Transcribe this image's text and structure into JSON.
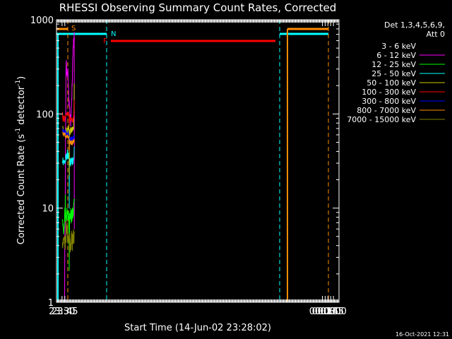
{
  "chart_data": {
    "type": "line",
    "title": "RHESSI Observing Summary Count Rates, Corrected",
    "xlabel": "Start Time (14-Jun-02 23:28:02)",
    "ylabel": "Corrected Count Rate (s",
    "ylabel_sup1": "-1",
    "ylabel_mid": " detector",
    "ylabel_sup2": "-1",
    "ylabel_end": ")",
    "yscale": "log",
    "ylim": [
      1,
      1000
    ],
    "y_ticks": [
      {
        "v": 1,
        "label": "1"
      },
      {
        "v": 10,
        "label": "10"
      },
      {
        "v": 100,
        "label": "100"
      },
      {
        "v": 1000,
        "label": "1000"
      }
    ],
    "xlim_min": [
      -1440,
      90
    ],
    "x_ticks": [
      {
        "v": -1410,
        "label": "23:30"
      },
      {
        "v": -1395,
        "label": "23:45"
      },
      {
        "v": 0,
        "label": "00:00"
      },
      {
        "v": 15,
        "label": "00:15"
      },
      {
        "v": 30,
        "label": "00:30"
      },
      {
        "v": 45,
        "label": "00:45"
      },
      {
        "v": 60,
        "label": "01:00"
      }
    ],
    "legend_header": [
      "Det 1,3,4,5,6,9,",
      "Att 0"
    ],
    "legend_position": "right",
    "footer": "16-Oct-2021 12:31",
    "flags": [
      {
        "label": "S",
        "color": "#ff8c00"
      },
      {
        "label": "N",
        "color": "#00ffff"
      },
      {
        "label": "F",
        "color": "#ff0000"
      }
    ],
    "series": [
      {
        "name": "3 - 6 keV",
        "color": "#000000",
        "x": [
          -1397.0,
          -1395.0,
          -1394.0,
          -1393.0,
          -1391.0,
          -1389.0,
          -1387.0,
          -1385.0,
          -1383.0,
          -1381.0,
          -1379.0,
          -1377.0,
          -1375.0,
          -1373.0,
          -1371.0,
          -1369.0,
          -1367.0,
          -1365.0,
          -1363.0,
          -1361.0,
          -1359.0,
          -1357.0,
          -1355.0,
          -1353.0,
          -1351.0,
          -1349.0,
          -1347.0,
          -1345.0,
          -1344.0,
          -1343.0
        ],
        "y": [
          1.0,
          1.0,
          5.5,
          20.0,
          60.0,
          120.0,
          190.0,
          230.0,
          260.0,
          280.0,
          270.0,
          235.0,
          200.0,
          175.0,
          160.0,
          148.0,
          143.0,
          143.0,
          150.0,
          165.0,
          185.0,
          210.0,
          245.0,
          290.0,
          360.0,
          440.0,
          520.0,
          590.0,
          600.0,
          600.0
        ]
      },
      {
        "name": "6 - 12 keV",
        "color": "#ff00ff",
        "x": [
          -1398.0,
          -1396.0,
          -1395.0,
          -1394.0,
          -1393.0,
          -1391.0,
          -1389.0,
          -1387.0,
          -1385.0,
          -1383.0,
          -1381.0,
          -1379.0,
          -1377.0,
          -1375.0,
          -1373.0,
          -1371.0,
          -1369.0,
          -1367.0,
          -1365.0,
          -1363.0,
          -1361.0,
          -1359.0,
          -1357.0,
          -1355.0,
          -1353.0,
          -1351.0,
          -1349.0,
          -1347.0,
          -1345.0,
          -1344.0,
          -1343.5
        ],
        "y": [
          1.0,
          1.0,
          5.0,
          6.0,
          10.0,
          50.0,
          250.0,
          360.0,
          300.0,
          250.0,
          260.0,
          300.0,
          240.0,
          170.0,
          140.0,
          130.0,
          110.0,
          95.0,
          85.0,
          80.0,
          95.0,
          120.0,
          160.0,
          220.0,
          310.0,
          420.0,
          540.0,
          620.0,
          690.0,
          700.0,
          6.0
        ]
      },
      {
        "name": "12 - 25 keV",
        "color": "#00ff00",
        "x": [
          -1408.0,
          -1404.0,
          -1400.0,
          -1397.0,
          -1396.0,
          -1395.0,
          -1394.0,
          -1393.0,
          -1392.0,
          -1391.0,
          -1389.0,
          -1387.0,
          -1385.0,
          -1383.0,
          -1381.0,
          -1379.0,
          -1377.0,
          -1375.0,
          -1373.0,
          -1371.5,
          -1371.0,
          -1370.5,
          -1369.0,
          -1367.0,
          -1365.0,
          -1363.0,
          -1361.0,
          -1359.0,
          -1357.0,
          -1355.0,
          -1353.0,
          -1351.0,
          -1349.0,
          -1347.0,
          -1345.0,
          -1344.0
        ],
        "y": [
          6.5,
          6.0,
          6.5,
          6.0,
          8.0,
          9.5,
          7.5,
          9.0,
          13.0,
          9.0,
          8.5,
          8.0,
          8.5,
          8.5,
          8.5,
          8.0,
          8.0,
          8.5,
          8.0,
          5.5,
          2.5,
          5.0,
          8.0,
          8.0,
          8.5,
          8.5,
          8.0,
          8.0,
          8.0,
          8.5,
          8.5,
          8.5,
          9.0,
          10.5,
          11.5,
          12.0
        ]
      },
      {
        "name": "25 - 50 keV",
        "color": "#00ffff",
        "x": [
          -1408.0,
          -1404.0,
          -1400.0,
          -1398.0,
          -1396.0,
          -1394.0,
          -1392.0,
          -1390.0,
          -1388.0,
          -1386.0,
          -1384.0,
          -1382.0,
          -1380.0,
          -1378.0,
          -1376.0,
          -1374.0,
          -1372.0,
          -1371.5,
          -1371.0,
          -1370.5,
          -1370.0,
          -1368.0,
          -1366.0,
          -1364.0,
          -1362.0,
          -1360.0,
          -1358.0,
          -1356.0,
          -1354.0,
          -1352.0,
          -1350.0,
          -1348.0,
          -1346.0,
          -1344.0
        ],
        "y": [
          33.0,
          32.0,
          32.0,
          31.0,
          30.0,
          31.0,
          32.0,
          33.0,
          34.0,
          35.0,
          36.0,
          37.0,
          37.0,
          37.0,
          36.0,
          35.0,
          33.0,
          20.0,
          9.5,
          20.0,
          32.0,
          32.0,
          31.0,
          31.0,
          31.0,
          31.0,
          31.0,
          31.0,
          32.0,
          31.0,
          31.0,
          31.0,
          33.0,
          45.0
        ]
      },
      {
        "name": "50 - 100 keV",
        "color": "#cccc00",
        "x": [
          -1408.0,
          -1400.0,
          -1395.0,
          -1390.0,
          -1385.0,
          -1380.0,
          -1376.0,
          -1373.0,
          -1371.5,
          -1371.0,
          -1370.5,
          -1368.0,
          -1364.0,
          -1360.0,
          -1356.0,
          -1352.0,
          -1348.0,
          -1345.0,
          -1344.0
        ],
        "y": [
          70.0,
          67.0,
          64.0,
          66.0,
          67.0,
          68.0,
          70.0,
          74.0,
          40.0,
          23.0,
          40.0,
          65.0,
          66.0,
          67.0,
          67.0,
          67.0,
          68.0,
          120.0,
          210.0
        ]
      },
      {
        "name": "100 - 300 keV",
        "color": "#ff0000",
        "x": [
          -1408.0,
          -1404.0,
          -1400.0,
          -1396.0,
          -1392.0,
          -1388.0,
          -1384.0,
          -1380.0,
          -1376.0,
          -1372.0,
          -1371.0,
          -1370.0,
          -1366.0,
          -1362.0,
          -1358.0,
          -1354.0,
          -1350.0,
          -1347.0,
          -1345.0,
          -1344.0
        ],
        "y": [
          102.0,
          88.0,
          94.0,
          88.0,
          90.0,
          94.0,
          98.0,
          101.0,
          100.0,
          97.0,
          80.0,
          92.0,
          88.0,
          86.0,
          86.0,
          86.0,
          88.0,
          90.0,
          105.0,
          140.0
        ]
      },
      {
        "name": "300 - 800 keV",
        "color": "#0000ff",
        "x": [
          -1408.0,
          -1404.0,
          -1400.0,
          -1396.0,
          -1392.0,
          -1388.0,
          -1384.0,
          -1380.0,
          -1376.0,
          -1372.0,
          -1371.0,
          -1370.0,
          -1366.0,
          -1362.0,
          -1358.0,
          -1354.0,
          -1350.0,
          -1346.0,
          -1344.0
        ],
        "y": [
          70.0,
          66.0,
          69.0,
          66.0,
          65.0,
          63.0,
          61.0,
          62.0,
          62.0,
          62.0,
          43.0,
          58.0,
          55.0,
          54.0,
          54.0,
          54.0,
          55.0,
          56.0,
          60.0
        ]
      },
      {
        "name": "800 - 7000 keV",
        "color": "#ff8c00",
        "x": [
          -1408.0,
          -1404.0,
          -1400.0,
          -1396.0,
          -1392.0,
          -1388.0,
          -1384.0,
          -1380.0,
          -1376.0,
          -1372.0,
          -1371.0,
          -1370.0,
          -1366.0,
          -1362.0,
          -1358.0,
          -1354.0,
          -1350.0,
          -1346.0,
          -1344.0
        ],
        "y": [
          65.0,
          60.0,
          62.0,
          60.0,
          59.0,
          58.0,
          57.0,
          57.0,
          56.0,
          55.0,
          38.0,
          52.0,
          50.0,
          50.0,
          50.0,
          50.0,
          50.0,
          51.0,
          53.0
        ]
      },
      {
        "name": "7000 - 15000 keV",
        "color": "#808000",
        "x": [
          -1408.0,
          -1404.0,
          -1400.0,
          -1397.0,
          -1395.0,
          -1393.0,
          -1391.0,
          -1389.0,
          -1387.0,
          -1385.0,
          -1383.0,
          -1381.0,
          -1379.0,
          -1377.0,
          -1375.0,
          -1373.0,
          -1371.0,
          -1369.0,
          -1367.0,
          -1365.0,
          -1363.0,
          -1361.0,
          -1359.0,
          -1357.0,
          -1355.0,
          -1353.0,
          -1351.0,
          -1349.0,
          -1347.0,
          -1345.0,
          -1344.0
        ],
        "y": [
          4.5,
          4.2,
          4.3,
          4.0,
          4.2,
          4.5,
          5.0,
          5.5,
          5.8,
          5.5,
          5.5,
          5.6,
          5.5,
          5.4,
          5.3,
          5.0,
          4.5,
          4.5,
          4.4,
          4.5,
          4.6,
          4.5,
          4.4,
          4.3,
          4.4,
          4.5,
          4.6,
          4.7,
          4.8,
          5.0,
          5.5
        ]
      }
    ]
  }
}
